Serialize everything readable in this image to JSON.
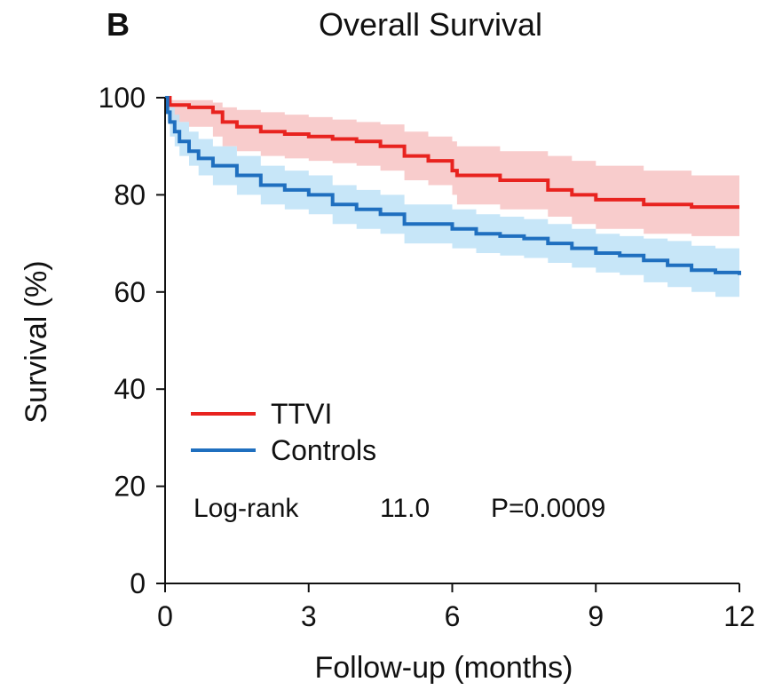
{
  "chart_data": {
    "type": "line",
    "panel_label": "B",
    "title": "Overall Survival",
    "xlabel": "Follow-up (months)",
    "ylabel": "Survival (%)",
    "xlim": [
      0,
      12
    ],
    "ylim": [
      0,
      100
    ],
    "xticks": [
      0,
      3,
      6,
      9,
      12
    ],
    "yticks": [
      0,
      20,
      40,
      60,
      80,
      100
    ],
    "grid": false,
    "legend_position": "lower-left",
    "series": [
      {
        "name": "TTVI",
        "color": "#e8231f",
        "band_color": "#f7c3c3",
        "x": [
          0,
          0.1,
          0.5,
          1.0,
          1.2,
          1.5,
          2.0,
          2.5,
          3.0,
          3.5,
          4.0,
          4.5,
          5.0,
          5.5,
          6.0,
          6.1,
          7.0,
          8.0,
          8.5,
          9.0,
          10.0,
          11.0,
          12.0
        ],
        "y": [
          100,
          98.5,
          98,
          97,
          95,
          94,
          93,
          92.5,
          92,
          91.5,
          91,
          90,
          88,
          87,
          85,
          84,
          83,
          81,
          80,
          79,
          78,
          77.5,
          77.5
        ],
        "upper": [
          100,
          99.5,
          99.5,
          99,
          98,
          97.5,
          97,
          96.5,
          96,
          95.5,
          95,
          94.5,
          93,
          92,
          91,
          90,
          89,
          88,
          87,
          86,
          85,
          84,
          83
        ],
        "lower": [
          100,
          95,
          94,
          92,
          90,
          89,
          88,
          87.5,
          87,
          86.5,
          86,
          85,
          83,
          82,
          80,
          78,
          77,
          75.5,
          74,
          73,
          72,
          71.5,
          71
        ]
      },
      {
        "name": "Controls",
        "color": "#1f6fbf",
        "band_color": "#bde2f7",
        "x": [
          0,
          0.05,
          0.1,
          0.2,
          0.3,
          0.5,
          0.7,
          1.0,
          1.5,
          2.0,
          2.5,
          3.0,
          3.5,
          4.0,
          4.5,
          5.0,
          5.5,
          6.0,
          6.5,
          7.0,
          7.5,
          8.0,
          8.5,
          9.0,
          9.5,
          10.0,
          10.5,
          11.0,
          11.5,
          12.0
        ],
        "y": [
          100,
          97,
          95,
          93,
          91,
          89,
          87.5,
          86,
          84,
          82,
          81,
          80,
          78,
          77,
          76,
          74,
          74,
          73,
          72,
          71.5,
          71,
          70,
          69,
          68,
          67.5,
          66.5,
          65.5,
          64.5,
          64,
          63.5
        ],
        "upper": [
          100,
          99,
          98,
          96.5,
          95,
          93,
          91.5,
          90,
          88,
          86,
          85,
          84,
          82,
          81,
          80,
          78,
          78,
          77,
          76,
          75.5,
          75,
          74,
          73,
          72,
          71.5,
          71,
          70.5,
          69.5,
          69,
          68.5
        ],
        "lower": [
          100,
          95,
          92,
          90,
          88,
          86,
          84,
          82,
          80,
          78,
          77,
          76,
          74,
          73,
          72,
          70,
          70,
          69,
          68,
          67.5,
          67,
          66,
          65,
          64,
          63.5,
          62,
          61,
          60,
          59,
          58
        ]
      }
    ],
    "annotation": {
      "test": "Log-rank",
      "statistic": "11.0",
      "p_value": "P=0.0009"
    }
  }
}
